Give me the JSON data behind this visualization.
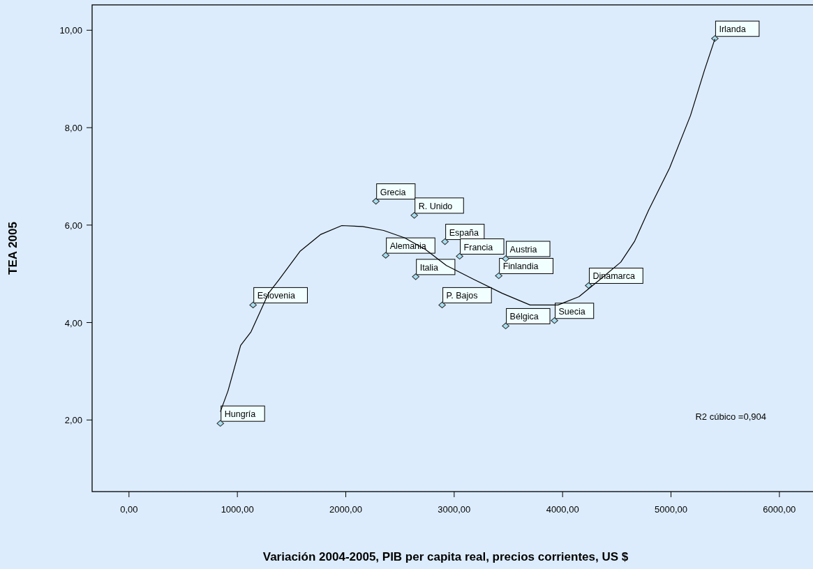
{
  "chart_data": {
    "type": "scatter",
    "xlabel": "Variación 2004-2005, PIB per capita real, precios corrientes, US $",
    "ylabel": "TEA 2005",
    "xlim": [
      -340,
      6310
    ],
    "ylim": [
      0.53,
      10.52
    ],
    "xticks": [
      {
        "value": 0,
        "label": "0,00"
      },
      {
        "value": 1000,
        "label": "1000,00"
      },
      {
        "value": 2000,
        "label": "2000,00"
      },
      {
        "value": 3000,
        "label": "3000,00"
      },
      {
        "value": 4000,
        "label": "4000,00"
      },
      {
        "value": 5000,
        "label": "5000,00"
      },
      {
        "value": 6000,
        "label": "6000,00"
      }
    ],
    "yticks": [
      {
        "value": 2,
        "label": "2,00"
      },
      {
        "value": 4,
        "label": "4,00"
      },
      {
        "value": 6,
        "label": "6,00"
      },
      {
        "value": 8,
        "label": "8,00"
      },
      {
        "value": 10,
        "label": "10,00"
      }
    ],
    "grid": false,
    "marker": "diamond",
    "series": [
      {
        "color": "#a8dff0",
        "x": [
          843,
          1145,
          2278,
          2632,
          2915,
          2368,
          3050,
          2645,
          3475,
          3411,
          2889,
          3475,
          3925,
          4240,
          5405
        ],
        "values": [
          1.93,
          4.36,
          6.49,
          6.2,
          5.66,
          5.38,
          5.36,
          4.94,
          5.31,
          4.96,
          4.36,
          3.93,
          4.04,
          4.76,
          9.83
        ]
      },
      {
        "type": "line",
        "color": "#000000",
        "marker": "none",
        "x": [
          843,
          914,
          1030,
          1126,
          1287,
          1384,
          1577,
          1770,
          1963,
          2156,
          2349,
          2542,
          2735,
          2928,
          3185,
          3443,
          3700,
          3958,
          4151,
          4344,
          4537,
          4665,
          4794,
          4987,
          5180,
          5309,
          5405
        ],
        "values": [
          2.17,
          2.6,
          3.53,
          3.81,
          4.6,
          4.88,
          5.46,
          5.81,
          5.99,
          5.97,
          5.89,
          5.74,
          5.5,
          5.17,
          4.88,
          4.6,
          4.36,
          4.36,
          4.53,
          4.88,
          5.24,
          5.67,
          6.31,
          7.17,
          8.25,
          9.18,
          9.82
        ]
      }
    ],
    "annotations": [
      {
        "text": "Hungría",
        "x": 843,
        "y": 1.93
      },
      {
        "text": "Eslovenia",
        "x": 1145,
        "y": 4.36
      },
      {
        "text": "Grecia",
        "x": 2278,
        "y": 6.49
      },
      {
        "text": "R. Unido",
        "x": 2632,
        "y": 6.2
      },
      {
        "text": "España",
        "x": 2915,
        "y": 5.66
      },
      {
        "text": "Alemania",
        "x": 2368,
        "y": 5.38
      },
      {
        "text": "Francia",
        "x": 3050,
        "y": 5.36
      },
      {
        "text": "Italia",
        "x": 2645,
        "y": 4.94
      },
      {
        "text": "Austria",
        "x": 3475,
        "y": 5.31
      },
      {
        "text": "Finlandia",
        "x": 3411,
        "y": 4.96
      },
      {
        "text": "P. Bajos",
        "x": 2889,
        "y": 4.36
      },
      {
        "text": "Bélgica",
        "x": 3475,
        "y": 3.93
      },
      {
        "text": "Suecia",
        "x": 3925,
        "y": 4.04
      },
      {
        "text": "Dinamarca",
        "x": 4240,
        "y": 4.76
      },
      {
        "text": "Irlanda",
        "x": 5405,
        "y": 9.83
      },
      "R2 cúbico =0,904"
    ]
  }
}
